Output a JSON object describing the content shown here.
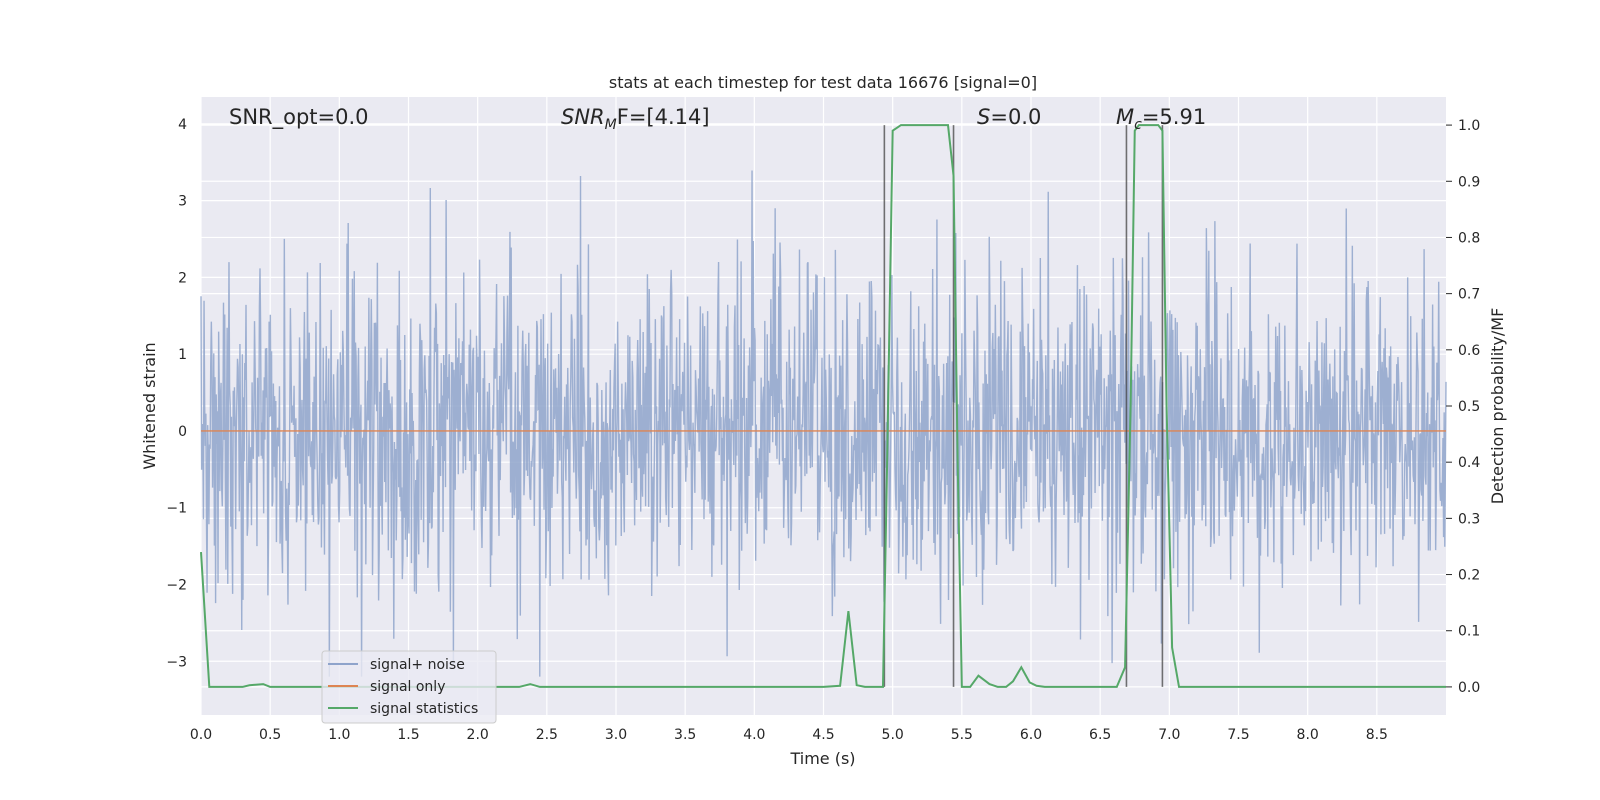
{
  "chart_data": {
    "type": "line",
    "title": "stats at each timestep for test data 16676 [signal=0]",
    "xlabel": "Time (s)",
    "ylabel": "Whitened strain",
    "y2label": "Detection probability/MF",
    "xlim": [
      0,
      9.0
    ],
    "ylim": [
      -3.7,
      4.35
    ],
    "y2lim": [
      -0.05,
      1.05
    ],
    "x_ticks": [
      0.0,
      0.5,
      1.0,
      1.5,
      2.0,
      2.5,
      3.0,
      3.5,
      4.0,
      4.5,
      5.0,
      5.5,
      6.0,
      6.5,
      7.0,
      7.5,
      8.0,
      8.5
    ],
    "x_tick_labels": [
      "0.0",
      "0.5",
      "1.0",
      "1.5",
      "2.0",
      "2.5",
      "3.0",
      "3.5",
      "4.0",
      "4.5",
      "5.0",
      "5.5",
      "6.0",
      "6.5",
      "7.0",
      "7.5",
      "8.0",
      "8.5"
    ],
    "y_ticks": [
      -3,
      -2,
      -1,
      0,
      1,
      2,
      3,
      4
    ],
    "y_tick_labels": [
      "−3",
      "−2",
      "−1",
      "0",
      "1",
      "2",
      "3",
      "4"
    ],
    "y2_ticks": [
      0.0,
      0.1,
      0.2,
      0.3,
      0.4,
      0.5,
      0.6,
      0.7,
      0.8,
      0.9,
      1.0
    ],
    "y2_tick_labels": [
      "0.0",
      "0.1",
      "0.2",
      "0.3",
      "0.4",
      "0.5",
      "0.6",
      "0.7",
      "0.8",
      "0.9",
      "1.0"
    ],
    "grid": true,
    "legend_position": "lower-left",
    "annotations": {
      "snr_opt": "SNR_opt=0.0",
      "snr_mf_label": "SNR",
      "snr_mf_sub": "M",
      "snr_mf_tail": "F=[4.14]",
      "s_label": "S",
      "s_tail": "=0.0",
      "mc_label": "M",
      "mc_sub": "c",
      "mc_tail": "=5.91"
    },
    "vlines": [
      {
        "x": 4.94,
        "ymin": 0.0,
        "ymax": 1.0
      },
      {
        "x": 5.44,
        "ymin": 0.0,
        "ymax": 1.0
      },
      {
        "x": 6.69,
        "ymin": 0.0,
        "ymax": 1.0
      },
      {
        "x": 6.95,
        "ymin": 0.0,
        "ymax": 1.0
      }
    ],
    "series": [
      {
        "name": "signal+ noise",
        "color": "#8fa4cb",
        "kind": "noise",
        "amplitude_sigma": 1.0,
        "peak_max": 4.0,
        "peak_min": -3.2,
        "n_samples": 2048
      },
      {
        "name": "signal only",
        "color": "#dd8452",
        "kind": "constant",
        "value": 0.0
      },
      {
        "name": "signal statistics",
        "color": "#55a868",
        "axis": "right",
        "x": [
          0.0,
          0.06,
          0.1,
          0.2,
          0.3,
          0.35,
          0.45,
          0.5,
          0.7,
          1.0,
          1.5,
          2.0,
          2.3,
          2.38,
          2.45,
          3.0,
          3.5,
          4.0,
          4.5,
          4.62,
          4.68,
          4.74,
          4.8,
          4.88,
          4.93,
          4.96,
          5.0,
          5.06,
          5.1,
          5.2,
          5.3,
          5.4,
          5.44,
          5.47,
          5.5,
          5.56,
          5.62,
          5.7,
          5.76,
          5.82,
          5.87,
          5.93,
          5.99,
          6.04,
          6.1,
          6.3,
          6.5,
          6.62,
          6.68,
          6.72,
          6.75,
          6.78,
          6.85,
          6.92,
          6.95,
          6.98,
          7.02,
          7.07,
          7.15,
          7.5,
          8.0,
          8.5,
          9.0
        ],
        "y": [
          0.24,
          0.0,
          0.0,
          0.0,
          0.0,
          0.003,
          0.005,
          0.0,
          0.0,
          0.0,
          0.0,
          0.0,
          0.0,
          0.005,
          0.0,
          0.0,
          0.0,
          0.0,
          0.0,
          0.002,
          0.135,
          0.003,
          0.0,
          0.0,
          0.0,
          0.4,
          0.99,
          1.0,
          1.0,
          1.0,
          1.0,
          1.0,
          0.91,
          0.4,
          0.0,
          0.0,
          0.02,
          0.005,
          0.0,
          0.0,
          0.01,
          0.035,
          0.008,
          0.002,
          0.0,
          0.0,
          0.0,
          0.0,
          0.035,
          0.5,
          0.99,
          1.0,
          1.0,
          1.0,
          0.99,
          0.5,
          0.07,
          0.0,
          0.0,
          0.0,
          0.0,
          0.0,
          0.0
        ]
      }
    ]
  }
}
